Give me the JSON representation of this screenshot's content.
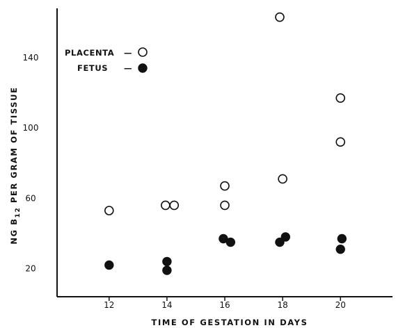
{
  "chart_data": {
    "type": "scatter",
    "xlabel": "TIME  OF  GESTATION  IN  DAYS",
    "ylabel_parts": {
      "before": "NG  B",
      "subscript": "12",
      "after": "  PER  GRAM  OF  TISSUE"
    },
    "x_ticks": [
      12,
      14,
      16,
      18,
      20
    ],
    "y_ticks": [
      20,
      60,
      100,
      140
    ],
    "xlim": [
      10.2,
      21.8
    ],
    "ylim": [
      4,
      168
    ],
    "grid": false,
    "legend_position": "top-left",
    "series": [
      {
        "name": "PLACENTA",
        "marker": "open-circle",
        "points": [
          {
            "x": 12,
            "y": 53
          },
          {
            "x": 13.95,
            "y": 56
          },
          {
            "x": 14.25,
            "y": 56
          },
          {
            "x": 16,
            "y": 67
          },
          {
            "x": 16,
            "y": 56
          },
          {
            "x": 17.9,
            "y": 163
          },
          {
            "x": 18,
            "y": 71
          },
          {
            "x": 20,
            "y": 117
          },
          {
            "x": 20,
            "y": 92
          }
        ]
      },
      {
        "name": "FETUS",
        "marker": "filled-circle",
        "points": [
          {
            "x": 12,
            "y": 22
          },
          {
            "x": 14,
            "y": 24
          },
          {
            "x": 14,
            "y": 19
          },
          {
            "x": 15.95,
            "y": 37
          },
          {
            "x": 16.2,
            "y": 35
          },
          {
            "x": 17.9,
            "y": 35
          },
          {
            "x": 18.1,
            "y": 38
          },
          {
            "x": 20.05,
            "y": 37
          },
          {
            "x": 20,
            "y": 31
          }
        ]
      }
    ],
    "legend": [
      {
        "label": "PLACENTA",
        "dash": "—",
        "marker": "open-circle"
      },
      {
        "label": "FETUS",
        "dash": "—",
        "marker": "filled-circle"
      }
    ]
  }
}
